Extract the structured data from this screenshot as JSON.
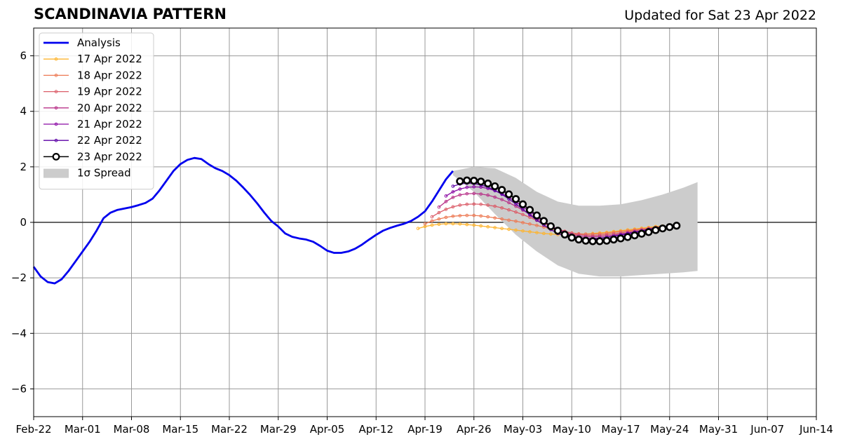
{
  "title": "SCANDINAVIA PATTERN",
  "subtitle": "Updated for Sat 23 Apr 2022",
  "chart_data": {
    "type": "line",
    "x_date_range": [
      "2022-02-22",
      "2022-06-14"
    ],
    "x_ticks": [
      "Feb-22",
      "Mar-01",
      "Mar-08",
      "Mar-15",
      "Mar-22",
      "Mar-29",
      "Apr-05",
      "Apr-12",
      "Apr-19",
      "Apr-26",
      "May-03",
      "May-10",
      "May-17",
      "May-24",
      "May-31",
      "Jun-07",
      "Jun-14"
    ],
    "y_ticks": [
      -6,
      -4,
      -2,
      0,
      2,
      4,
      6
    ],
    "y_tick_labels": [
      "−6",
      "−4",
      "−2",
      "0",
      "2",
      "4",
      "6"
    ],
    "ylim": [
      -7,
      7
    ],
    "grid": true,
    "zero_line": true,
    "legend_position": "top-left",
    "spread": {
      "name": "1σ Spread",
      "color": "#cccccc",
      "dates": [
        "2022-04-23",
        "2022-04-26",
        "2022-04-29",
        "2022-05-02",
        "2022-05-05",
        "2022-05-08",
        "2022-05-11",
        "2022-05-14",
        "2022-05-17",
        "2022-05-20",
        "2022-05-23",
        "2022-05-26",
        "2022-05-28"
      ],
      "upper": [
        1.85,
        2.0,
        1.95,
        1.6,
        1.1,
        0.75,
        0.6,
        0.6,
        0.65,
        0.8,
        1.0,
        1.25,
        1.45
      ],
      "lower": [
        1.7,
        1.1,
        0.3,
        -0.45,
        -1.05,
        -1.55,
        -1.85,
        -1.95,
        -1.95,
        -1.9,
        -1.85,
        -1.8,
        -1.75
      ]
    },
    "series": [
      {
        "name": "Analysis",
        "color": "#0000ee",
        "style": "thick",
        "dates": [
          "2022-02-22",
          "2022-02-23",
          "2022-02-24",
          "2022-02-25",
          "2022-02-26",
          "2022-02-27",
          "2022-02-28",
          "2022-03-01",
          "2022-03-02",
          "2022-03-03",
          "2022-03-04",
          "2022-03-05",
          "2022-03-06",
          "2022-03-07",
          "2022-03-08",
          "2022-03-09",
          "2022-03-10",
          "2022-03-11",
          "2022-03-12",
          "2022-03-13",
          "2022-03-14",
          "2022-03-15",
          "2022-03-16",
          "2022-03-17",
          "2022-03-18",
          "2022-03-19",
          "2022-03-20",
          "2022-03-21",
          "2022-03-22",
          "2022-03-23",
          "2022-03-24",
          "2022-03-25",
          "2022-03-26",
          "2022-03-27",
          "2022-03-28",
          "2022-03-29",
          "2022-03-30",
          "2022-03-31",
          "2022-04-01",
          "2022-04-02",
          "2022-04-03",
          "2022-04-04",
          "2022-04-05",
          "2022-04-06",
          "2022-04-07",
          "2022-04-08",
          "2022-04-09",
          "2022-04-10",
          "2022-04-11",
          "2022-04-12",
          "2022-04-13",
          "2022-04-14",
          "2022-04-15",
          "2022-04-16",
          "2022-04-17",
          "2022-04-18",
          "2022-04-19",
          "2022-04-20",
          "2022-04-21",
          "2022-04-22",
          "2022-04-23"
        ],
        "values": [
          -1.6,
          -1.95,
          -2.15,
          -2.2,
          -2.05,
          -1.75,
          -1.4,
          -1.05,
          -0.7,
          -0.3,
          0.15,
          0.35,
          0.45,
          0.5,
          0.55,
          0.62,
          0.7,
          0.85,
          1.15,
          1.5,
          1.85,
          2.1,
          2.25,
          2.32,
          2.28,
          2.1,
          1.95,
          1.85,
          1.7,
          1.5,
          1.25,
          0.98,
          0.68,
          0.35,
          0.05,
          -0.15,
          -0.4,
          -0.52,
          -0.58,
          -0.62,
          -0.7,
          -0.85,
          -1.02,
          -1.1,
          -1.1,
          -1.05,
          -0.95,
          -0.8,
          -0.62,
          -0.45,
          -0.3,
          -0.2,
          -0.12,
          -0.05,
          0.05,
          0.2,
          0.4,
          0.75,
          1.15,
          1.55,
          1.85
        ]
      },
      {
        "name": "17 Apr 2022",
        "color": "#fdb42f",
        "style": "thin",
        "start": "2022-04-18",
        "values": [
          -0.22,
          -0.15,
          -0.1,
          -0.07,
          -0.05,
          -0.05,
          -0.06,
          -0.08,
          -0.1,
          -0.13,
          -0.16,
          -0.19,
          -0.22,
          -0.25,
          -0.28,
          -0.31,
          -0.34,
          -0.37,
          -0.4,
          -0.42,
          -0.44,
          -0.45,
          -0.45,
          -0.44,
          -0.42,
          -0.4,
          -0.38,
          -0.36,
          -0.33,
          -0.3,
          -0.27,
          -0.24,
          -0.21,
          -0.18,
          -0.15,
          -0.13
        ]
      },
      {
        "name": "18 Apr 2022",
        "color": "#ed7953",
        "style": "thin",
        "start": "2022-04-19",
        "values": [
          -0.05,
          0.05,
          0.12,
          0.18,
          0.22,
          0.24,
          0.25,
          0.25,
          0.23,
          0.2,
          0.16,
          0.12,
          0.08,
          0.04,
          -0.01,
          -0.06,
          -0.11,
          -0.17,
          -0.23,
          -0.29,
          -0.34,
          -0.38,
          -0.41,
          -0.42,
          -0.42,
          -0.41,
          -0.39,
          -0.36,
          -0.33,
          -0.3,
          -0.27,
          -0.24,
          -0.21,
          -0.18,
          -0.15
        ]
      },
      {
        "name": "19 Apr 2022",
        "color": "#db5c68",
        "style": "thin",
        "start": "2022-04-20",
        "values": [
          0.2,
          0.35,
          0.47,
          0.56,
          0.62,
          0.65,
          0.66,
          0.65,
          0.62,
          0.58,
          0.52,
          0.45,
          0.37,
          0.28,
          0.18,
          0.07,
          -0.04,
          -0.14,
          -0.24,
          -0.32,
          -0.39,
          -0.43,
          -0.46,
          -0.47,
          -0.46,
          -0.44,
          -0.41,
          -0.38,
          -0.34,
          -0.3,
          -0.26,
          -0.22,
          -0.18,
          -0.15
        ]
      },
      {
        "name": "20 Apr 2022",
        "color": "#b83289",
        "style": "thin",
        "start": "2022-04-21",
        "values": [
          0.55,
          0.75,
          0.9,
          0.99,
          1.03,
          1.04,
          1.02,
          0.98,
          0.91,
          0.82,
          0.71,
          0.58,
          0.44,
          0.29,
          0.14,
          0.0,
          -0.13,
          -0.25,
          -0.35,
          -0.43,
          -0.48,
          -0.51,
          -0.52,
          -0.51,
          -0.49,
          -0.46,
          -0.42,
          -0.38,
          -0.34,
          -0.3,
          -0.26,
          -0.22,
          -0.18
        ]
      },
      {
        "name": "21 Apr 2022",
        "color": "#8b0aa5",
        "style": "thin",
        "start": "2022-04-22",
        "values": [
          0.95,
          1.1,
          1.2,
          1.26,
          1.28,
          1.27,
          1.22,
          1.14,
          1.03,
          0.9,
          0.74,
          0.57,
          0.39,
          0.21,
          0.03,
          -0.13,
          -0.27,
          -0.39,
          -0.48,
          -0.54,
          -0.57,
          -0.58,
          -0.57,
          -0.54,
          -0.5,
          -0.46,
          -0.42,
          -0.37,
          -0.32,
          -0.27,
          -0.22,
          -0.18
        ]
      },
      {
        "name": "22 Apr 2022",
        "color": "#5c01a6",
        "style": "thin",
        "start": "2022-04-23",
        "values": [
          1.3,
          1.38,
          1.41,
          1.4,
          1.35,
          1.27,
          1.15,
          1.01,
          0.84,
          0.66,
          0.47,
          0.27,
          0.08,
          -0.1,
          -0.26,
          -0.4,
          -0.5,
          -0.57,
          -0.61,
          -0.62,
          -0.61,
          -0.58,
          -0.54,
          -0.5,
          -0.45,
          -0.4,
          -0.35,
          -0.3,
          -0.25,
          -0.2,
          -0.16
        ]
      },
      {
        "name": "23 Apr 2022",
        "color": "#000000",
        "style": "bold-markers",
        "start": "2022-04-24",
        "values": [
          1.48,
          1.51,
          1.5,
          1.47,
          1.4,
          1.3,
          1.17,
          1.01,
          0.84,
          0.65,
          0.45,
          0.25,
          0.05,
          -0.14,
          -0.3,
          -0.44,
          -0.55,
          -0.62,
          -0.66,
          -0.68,
          -0.68,
          -0.66,
          -0.62,
          -0.58,
          -0.53,
          -0.47,
          -0.41,
          -0.35,
          -0.28,
          -0.22,
          -0.17,
          -0.12
        ]
      }
    ]
  }
}
